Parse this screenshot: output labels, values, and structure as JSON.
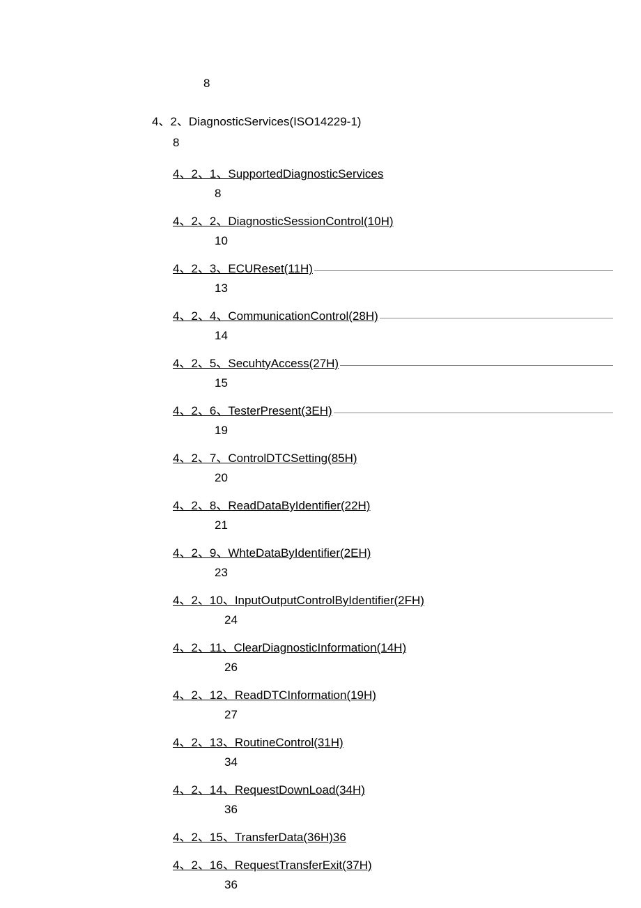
{
  "text_color": "#000000",
  "background_color": "#ffffff",
  "filler_color": "#888888",
  "font_size": 17,
  "top_page_num": "8",
  "section": {
    "heading": "4、2、DiagnosticServices(ISO14229-1)",
    "page_num": "8"
  },
  "entries": [
    {
      "label": "4、2、1、SupportedDiagnosticServices",
      "page": "8",
      "filler": false,
      "wide_indent": false
    },
    {
      "label": "4、2、2、DiagnosticSessionControl(10H)",
      "page": "10",
      "filler": false,
      "wide_indent": false
    },
    {
      "label": "4、2、3、ECUReset(11H)",
      "page": "13",
      "filler": true,
      "wide_indent": false
    },
    {
      "label": "4、2、4、CommunicationControl(28H)",
      "page": "14",
      "filler": true,
      "wide_indent": false
    },
    {
      "label": "4、2、5、SecuhtyAccess(27H)",
      "page": "15",
      "filler": true,
      "wide_indent": false
    },
    {
      "label": "4、2、6、TesterPresent(3EH)",
      "page": "19",
      "filler": true,
      "wide_indent": false
    },
    {
      "label": "4、2、7、ControlDTCSetting(85H)",
      "page": "20",
      "filler": false,
      "wide_indent": false
    },
    {
      "label": "4、2、8、ReadDataByIdentifier(22H)",
      "page": "21",
      "filler": false,
      "wide_indent": false
    },
    {
      "label": "4、2、9、WhteDataByIdentifier(2EH)",
      "page": "23",
      "filler": false,
      "wide_indent": false
    },
    {
      "label": "4、2、10、InputOutputControlByIdentifier(2FH)",
      "page": "24",
      "filler": false,
      "wide_indent": true
    },
    {
      "label": "4、2、11、ClearDiagnosticInformation(14H)",
      "page": "26",
      "filler": false,
      "wide_indent": true
    },
    {
      "label": "4、2、12、ReadDTCInformation(19H)",
      "page": "27",
      "filler": false,
      "wide_indent": true
    },
    {
      "label": "4、2、13、RoutineControl(31H)",
      "page": "34",
      "filler": false,
      "wide_indent": true
    },
    {
      "label": "4、2、14、RequestDownLoad(34H)",
      "page": "36",
      "filler": false,
      "wide_indent": true
    },
    {
      "label": "4、2、15、TransferData(36H)36",
      "page": null,
      "filler": false,
      "wide_indent": true,
      "inline_page": true
    },
    {
      "label": "4、2、16、RequestTransferExit(37H)",
      "page": "36",
      "filler": false,
      "wide_indent": true
    }
  ]
}
